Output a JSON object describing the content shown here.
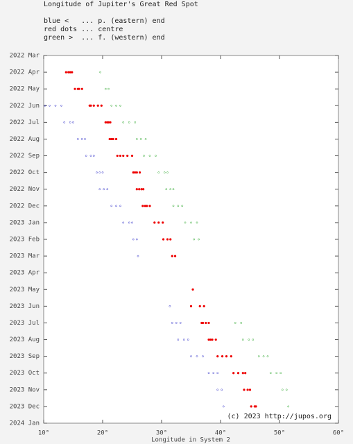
{
  "chart_data": {
    "type": "scatter",
    "title": "Longitude of Jupiter's Great Red Spot",
    "x_label": "Longitude in System 2",
    "copyright": "(c) 2023 http://jupos.org",
    "xlim": [
      10,
      60
    ],
    "xticks": [
      {
        "value": 10,
        "label": "10°"
      },
      {
        "value": 20,
        "label": "20°"
      },
      {
        "value": 30,
        "label": "30°"
      },
      {
        "value": 40,
        "label": "40°"
      },
      {
        "value": 50,
        "label": "50°"
      },
      {
        "value": 60,
        "label": "60°"
      }
    ],
    "ylim": [
      "2022-03",
      "2024-01"
    ],
    "yticks": [
      {
        "value": "2022-03",
        "label": "2022 Mar"
      },
      {
        "value": "2022-04",
        "label": "2022 Apr"
      },
      {
        "value": "2022-05",
        "label": "2022 May"
      },
      {
        "value": "2022-06",
        "label": "2022 Jun"
      },
      {
        "value": "2022-07",
        "label": "2022 Jul"
      },
      {
        "value": "2022-08",
        "label": "2022 Aug"
      },
      {
        "value": "2022-09",
        "label": "2022 Sep"
      },
      {
        "value": "2022-10",
        "label": "2022 Oct"
      },
      {
        "value": "2022-11",
        "label": "2022 Nov"
      },
      {
        "value": "2022-12",
        "label": "2022 Dec"
      },
      {
        "value": "2023-01",
        "label": "2023 Jan"
      },
      {
        "value": "2023-02",
        "label": "2023 Feb"
      },
      {
        "value": "2023-03",
        "label": "2023 Mar"
      },
      {
        "value": "2023-04",
        "label": "2023 Apr"
      },
      {
        "value": "2023-05",
        "label": "2023 May"
      },
      {
        "value": "2023-06",
        "label": "2023 Jun"
      },
      {
        "value": "2023-07",
        "label": "2023 Jul"
      },
      {
        "value": "2023-08",
        "label": "2023 Aug"
      },
      {
        "value": "2023-09",
        "label": "2023 Sep"
      },
      {
        "value": "2023-10",
        "label": "2023 Oct"
      },
      {
        "value": "2023-11",
        "label": "2023 Nov"
      },
      {
        "value": "2023-12",
        "label": "2023 Dec"
      },
      {
        "value": "2024-01",
        "label": "2024 Jan"
      }
    ],
    "series": [
      {
        "name": "blue <   ... p. (eastern) end",
        "color": "#3a3acc",
        "x": [
          10.2,
          11.0,
          12.0,
          13.0,
          13.5,
          14.5,
          15.0,
          15.8,
          16.5,
          17.0,
          17.2,
          18.0,
          18.5,
          19.0,
          19.5,
          20.0,
          19.5,
          20.2,
          20.8,
          21.5,
          22.3,
          23.0,
          23.5,
          24.5,
          25.0,
          25.2,
          25.8,
          26.0,
          31.4,
          31.8,
          32.5,
          33.2,
          32.8,
          33.8,
          34.5,
          35.0,
          36.0,
          37.0,
          38.0,
          38.8,
          39.5,
          39.5,
          40.2,
          40.5
        ],
        "values": [
          "2022-06",
          "2022-06",
          "2022-06",
          "2022-06",
          "2022-07",
          "2022-07",
          "2022-07",
          "2022-08",
          "2022-08",
          "2022-08",
          "2022-09",
          "2022-09",
          "2022-09",
          "2022-10",
          "2022-10",
          "2022-10",
          "2022-11",
          "2022-11",
          "2022-11",
          "2022-12",
          "2022-12",
          "2022-12",
          "2023-01",
          "2023-01",
          "2023-01",
          "2023-02",
          "2023-02",
          "2023-03",
          "2023-06",
          "2023-07",
          "2023-07",
          "2023-07",
          "2023-08",
          "2023-08",
          "2023-08",
          "2023-09",
          "2023-09",
          "2023-09",
          "2023-10",
          "2023-10",
          "2023-10",
          "2023-11",
          "2023-11",
          "2023-12"
        ]
      },
      {
        "name": "red dots ... centre",
        "color": "#ee0000",
        "x": [
          14.2,
          14.5,
          13.8,
          14.8,
          15.3,
          16.0,
          15.8,
          16.5,
          17.8,
          18.5,
          19.2,
          19.8,
          18.0,
          20.5,
          21.0,
          21.3,
          20.8,
          21.2,
          21.8,
          22.3,
          21.5,
          22.5,
          23.5,
          24.2,
          25.0,
          23.0,
          25.2,
          25.8,
          26.3,
          25.5,
          25.8,
          26.2,
          26.6,
          26.9,
          26.8,
          27.5,
          28.0,
          27.2,
          28.8,
          29.5,
          30.2,
          30.3,
          31.0,
          31.5,
          31.8,
          32.3,
          35.3,
          35.0,
          36.5,
          37.2,
          37.0,
          37.5,
          38.0,
          36.8,
          38.0,
          38.6,
          39.2,
          38.3,
          39.5,
          40.3,
          41.0,
          41.8,
          42.2,
          43.0,
          43.8,
          44.2,
          44.0,
          44.6,
          45.0,
          45.2,
          45.8,
          46.0
        ],
        "values": [
          "2022-04",
          "2022-04",
          "2022-04",
          "2022-04",
          "2022-05",
          "2022-05",
          "2022-05",
          "2022-05",
          "2022-06",
          "2022-06",
          "2022-06",
          "2022-06",
          "2022-06",
          "2022-07",
          "2022-07",
          "2022-07",
          "2022-07",
          "2022-08",
          "2022-08",
          "2022-08",
          "2022-08",
          "2022-09",
          "2022-09",
          "2022-09",
          "2022-09",
          "2022-09",
          "2022-10",
          "2022-10",
          "2022-10",
          "2022-10",
          "2022-11",
          "2022-11",
          "2022-11",
          "2022-11",
          "2022-12",
          "2022-12",
          "2022-12",
          "2022-12",
          "2023-01",
          "2023-01",
          "2023-01",
          "2023-02",
          "2023-02",
          "2023-02",
          "2023-03",
          "2023-03",
          "2023-05",
          "2023-06",
          "2023-06",
          "2023-06",
          "2023-07",
          "2023-07",
          "2023-07",
          "2023-07",
          "2023-08",
          "2023-08",
          "2023-08",
          "2023-08",
          "2023-09",
          "2023-09",
          "2023-09",
          "2023-09",
          "2023-10",
          "2023-10",
          "2023-10",
          "2023-10",
          "2023-11",
          "2023-11",
          "2023-11",
          "2023-12",
          "2023-12",
          "2023-12"
        ]
      },
      {
        "name": "green >  ... f. (western) end",
        "color": "#33aa33",
        "x": [
          19.6,
          20.5,
          21.0,
          21.5,
          22.3,
          23.0,
          23.5,
          24.5,
          25.5,
          25.8,
          26.5,
          27.3,
          27.0,
          28.0,
          29.0,
          29.5,
          30.5,
          31.0,
          30.8,
          31.5,
          32.0,
          32.0,
          32.8,
          33.5,
          34.0,
          35.0,
          36.0,
          35.5,
          36.3,
          42.5,
          43.5,
          43.8,
          44.8,
          45.5,
          46.5,
          47.3,
          48.0,
          48.5,
          49.5,
          50.2,
          50.5,
          51.2,
          51.5
        ],
        "values": [
          "2022-04",
          "2022-05",
          "2022-05",
          "2022-06",
          "2022-06",
          "2022-06",
          "2022-07",
          "2022-07",
          "2022-07",
          "2022-08",
          "2022-08",
          "2022-08",
          "2022-09",
          "2022-09",
          "2022-09",
          "2022-10",
          "2022-10",
          "2022-10",
          "2022-11",
          "2022-11",
          "2022-11",
          "2022-12",
          "2022-12",
          "2022-12",
          "2023-01",
          "2023-01",
          "2023-01",
          "2023-02",
          "2023-02",
          "2023-07",
          "2023-07",
          "2023-08",
          "2023-08",
          "2023-08",
          "2023-09",
          "2023-09",
          "2023-09",
          "2023-10",
          "2023-10",
          "2023-10",
          "2023-11",
          "2023-11",
          "2023-12"
        ]
      }
    ]
  }
}
